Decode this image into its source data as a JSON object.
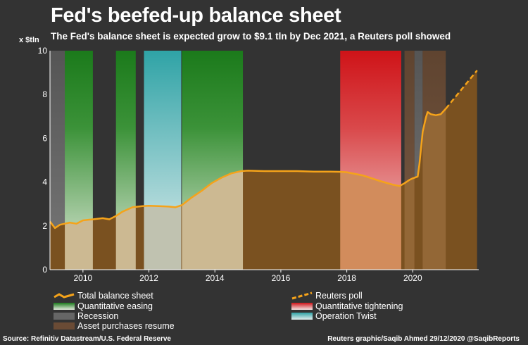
{
  "title": "Fed's beefed-up balance sheet",
  "subtitle": "The Fed's balance sheet is expected grow to $9.1 tln by Dec 2021, a Reuters poll showed",
  "unit": "x $tln",
  "source": "Source: Refinitiv Datastream/U.S. Federal Reserve",
  "credit": "Reuters graphic/Saqib Ahmed 29/12/2020 @SaqibReports",
  "colors": {
    "background": "#333333",
    "line": "#f5a31a",
    "area": "#7a5120",
    "qe": "#1e7a1e",
    "qt": "#d0161a",
    "recession": "#5a5a5a",
    "twist": "#35a5a8",
    "asset_purchases": "#6a4b35"
  },
  "legend": {
    "total": "Total balance sheet",
    "poll": "Reuters poll",
    "qe": "Quantitative easing",
    "qt": "Quantitative tightening",
    "recession": "Recession",
    "twist": "Operation Twist",
    "asset": "Asset purchases resume"
  },
  "chart_data": {
    "type": "area",
    "xlim": [
      2009.0,
      2022.0
    ],
    "ylim": [
      0,
      10
    ],
    "x_ticks": [
      2010,
      2012,
      2014,
      2016,
      2018,
      2020
    ],
    "y_ticks": [
      0,
      2,
      4,
      6,
      8,
      10
    ],
    "series": [
      {
        "name": "Total balance sheet",
        "style": "solid",
        "points": [
          [
            2009.0,
            2.2
          ],
          [
            2009.15,
            1.9
          ],
          [
            2009.3,
            2.05
          ],
          [
            2009.45,
            2.1
          ],
          [
            2009.6,
            2.15
          ],
          [
            2009.8,
            2.1
          ],
          [
            2010.0,
            2.25
          ],
          [
            2010.3,
            2.3
          ],
          [
            2010.6,
            2.35
          ],
          [
            2010.8,
            2.3
          ],
          [
            2011.0,
            2.45
          ],
          [
            2011.2,
            2.65
          ],
          [
            2011.5,
            2.85
          ],
          [
            2011.8,
            2.9
          ],
          [
            2012.0,
            2.92
          ],
          [
            2012.3,
            2.9
          ],
          [
            2012.6,
            2.88
          ],
          [
            2012.8,
            2.85
          ],
          [
            2013.0,
            2.95
          ],
          [
            2013.3,
            3.3
          ],
          [
            2013.6,
            3.6
          ],
          [
            2013.9,
            3.95
          ],
          [
            2014.2,
            4.2
          ],
          [
            2014.5,
            4.4
          ],
          [
            2014.8,
            4.5
          ],
          [
            2015.0,
            4.52
          ],
          [
            2015.5,
            4.5
          ],
          [
            2016.0,
            4.5
          ],
          [
            2016.5,
            4.5
          ],
          [
            2017.0,
            4.48
          ],
          [
            2017.5,
            4.48
          ],
          [
            2017.8,
            4.47
          ],
          [
            2018.0,
            4.45
          ],
          [
            2018.5,
            4.3
          ],
          [
            2019.0,
            4.05
          ],
          [
            2019.4,
            3.88
          ],
          [
            2019.6,
            3.82
          ],
          [
            2019.75,
            3.95
          ],
          [
            2019.9,
            4.1
          ],
          [
            2020.0,
            4.17
          ],
          [
            2020.15,
            4.25
          ],
          [
            2020.2,
            4.8
          ],
          [
            2020.3,
            6.3
          ],
          [
            2020.4,
            6.95
          ],
          [
            2020.45,
            7.2
          ],
          [
            2020.55,
            7.1
          ],
          [
            2020.7,
            7.05
          ],
          [
            2020.85,
            7.1
          ],
          [
            2021.0,
            7.35
          ]
        ]
      },
      {
        "name": "Reuters poll",
        "style": "dashed",
        "points": [
          [
            2021.0,
            7.35
          ],
          [
            2021.95,
            9.1
          ]
        ]
      }
    ],
    "bands": [
      {
        "type": "qe",
        "start": 2009.0,
        "end": 2010.3
      },
      {
        "type": "recession",
        "start": 2009.0,
        "end": 2009.45
      },
      {
        "type": "qe",
        "start": 2011.0,
        "end": 2011.6
      },
      {
        "type": "twist",
        "start": 2011.85,
        "end": 2012.98
      },
      {
        "type": "qe",
        "start": 2013.0,
        "end": 2014.85
      },
      {
        "type": "qt",
        "start": 2017.8,
        "end": 2019.65
      },
      {
        "type": "recession",
        "start": 2020.05,
        "end": 2020.3
      },
      {
        "type": "asset",
        "start": 2019.75,
        "end": 2020.05
      },
      {
        "type": "asset",
        "start": 2020.3,
        "end": 2021.0
      }
    ]
  }
}
